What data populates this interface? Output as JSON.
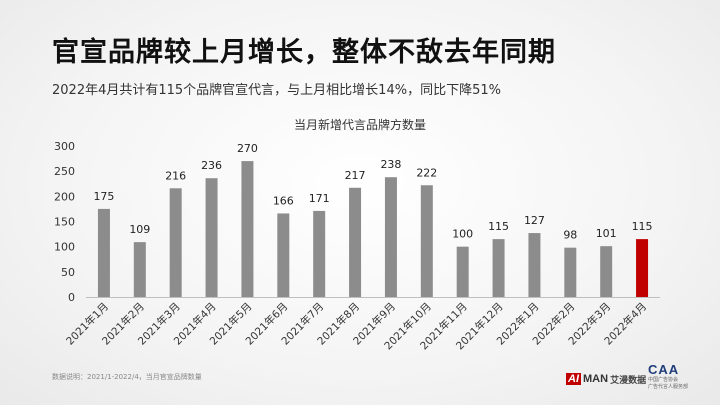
{
  "headline": "官宣品牌较上月增长，整体不敌去年同期",
  "subhead": "2022年4月共计有115个品牌官宣代言，与上月相比增长14%，同比下降51%",
  "footnote": "数据说明：2021/1-2022/4，当月官宣品牌数量",
  "logos": {
    "aiman_ai": "AI",
    "aiman_man": "MAN",
    "aiman_cn": "艾漫数据",
    "caa_mark": "CAA",
    "caa_line1": "中国广告协会",
    "caa_line2": "广告代言人服务部"
  },
  "colors": {
    "bar": "#8c8c8c",
    "highlight": "#c00000",
    "axis": "#bfbfbf"
  },
  "chart_data": {
    "type": "bar",
    "title": "当月新增代言品牌方数量",
    "categories": [
      "2021年1月",
      "2021年2月",
      "2021年3月",
      "2021年4月",
      "2021年5月",
      "2021年6月",
      "2021年7月",
      "2021年8月",
      "2021年9月",
      "2021年10月",
      "2021年11月",
      "2021年12月",
      "2022年1月",
      "2022年2月",
      "2022年3月",
      "2022年4月"
    ],
    "values": [
      175,
      109,
      216,
      236,
      270,
      166,
      171,
      217,
      238,
      222,
      100,
      115,
      127,
      98,
      101,
      115
    ],
    "highlight_index": 15,
    "ylim": [
      0,
      300
    ],
    "yticks": [
      0,
      50,
      100,
      150,
      200,
      250,
      300
    ],
    "grid": false,
    "legend": "none"
  }
}
